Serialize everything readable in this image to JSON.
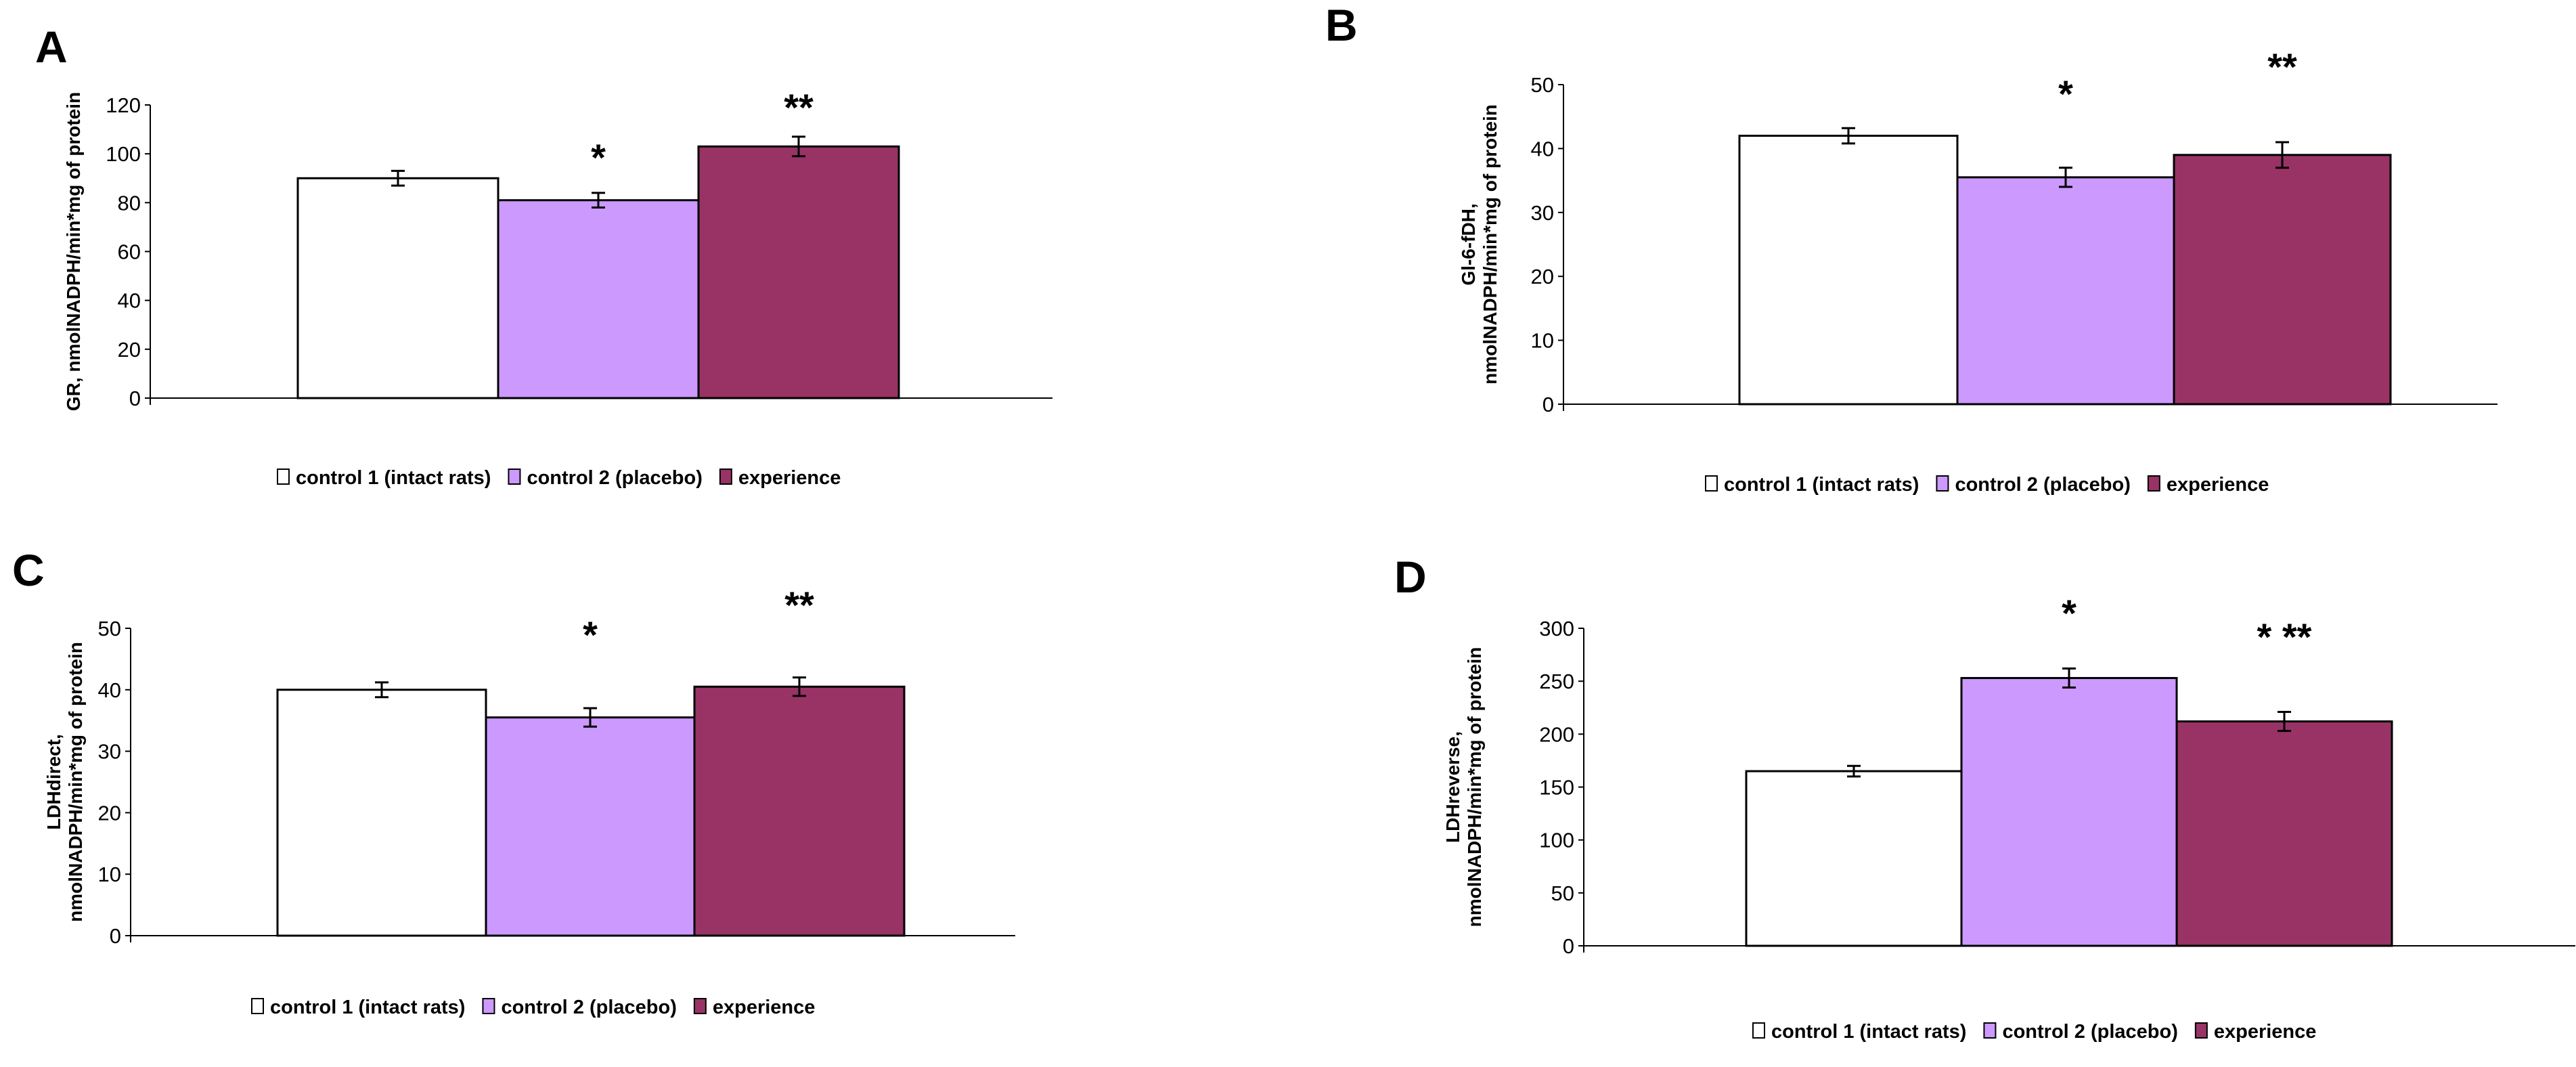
{
  "legend_labels": [
    "control 1 (intact rats)",
    "control 2 (placebo)",
    "experience"
  ],
  "colors": {
    "control1": "#ffffff",
    "control2": "#cc99ff",
    "experience": "#993366"
  },
  "chart_data": [
    {
      "panel": "A",
      "type": "bar",
      "categories": [
        "control 1 (intact rats)",
        "control 2 (placebo)",
        "experience"
      ],
      "values": [
        90,
        81,
        103
      ],
      "errors": [
        3,
        3,
        4
      ],
      "annotations": [
        "",
        "*",
        "**"
      ],
      "ylabel_lines": [
        "GR, nmolNADPH/min*mg of protein"
      ],
      "ylim": [
        0,
        120
      ],
      "yticks": [
        0,
        20,
        40,
        60,
        80,
        100,
        120
      ],
      "legend_position": "bottom"
    },
    {
      "panel": "B",
      "type": "bar",
      "categories": [
        "control 1 (intact rats)",
        "control 2 (placebo)",
        "experience"
      ],
      "values": [
        42,
        35.5,
        39
      ],
      "errors": [
        1.2,
        1.5,
        2
      ],
      "annotations": [
        "",
        "*",
        "**"
      ],
      "ylabel_lines": [
        "Gl-6-fDH,",
        "nmolNADPH/min*mg of protein"
      ],
      "ylim": [
        0,
        50
      ],
      "yticks": [
        0,
        10,
        20,
        30,
        40,
        50
      ],
      "legend_position": "bottom"
    },
    {
      "panel": "C",
      "type": "bar",
      "categories": [
        "control 1 (intact rats)",
        "control 2 (placebo)",
        "experience"
      ],
      "values": [
        40,
        35.5,
        40.5
      ],
      "errors": [
        1.2,
        1.5,
        1.5
      ],
      "annotations": [
        "",
        "*",
        "**"
      ],
      "ylabel_lines": [
        "LDHdirect,",
        "nmolNADPH/min*mg of protein"
      ],
      "ylim": [
        0,
        50
      ],
      "yticks": [
        0,
        10,
        20,
        30,
        40,
        50
      ],
      "legend_position": "bottom"
    },
    {
      "panel": "D",
      "type": "bar",
      "categories": [
        "control 1 (intact rats)",
        "control 2 (placebo)",
        "experience"
      ],
      "values": [
        165,
        253,
        212
      ],
      "errors": [
        5,
        9,
        9
      ],
      "annotations": [
        "",
        "*",
        "* **"
      ],
      "ylabel_lines": [
        "LDHreverse,",
        "nmolNADPH/min*mg of protein"
      ],
      "ylim": [
        0,
        300
      ],
      "yticks": [
        0,
        50,
        100,
        150,
        200,
        250,
        300
      ],
      "legend_position": "bottom"
    }
  ]
}
